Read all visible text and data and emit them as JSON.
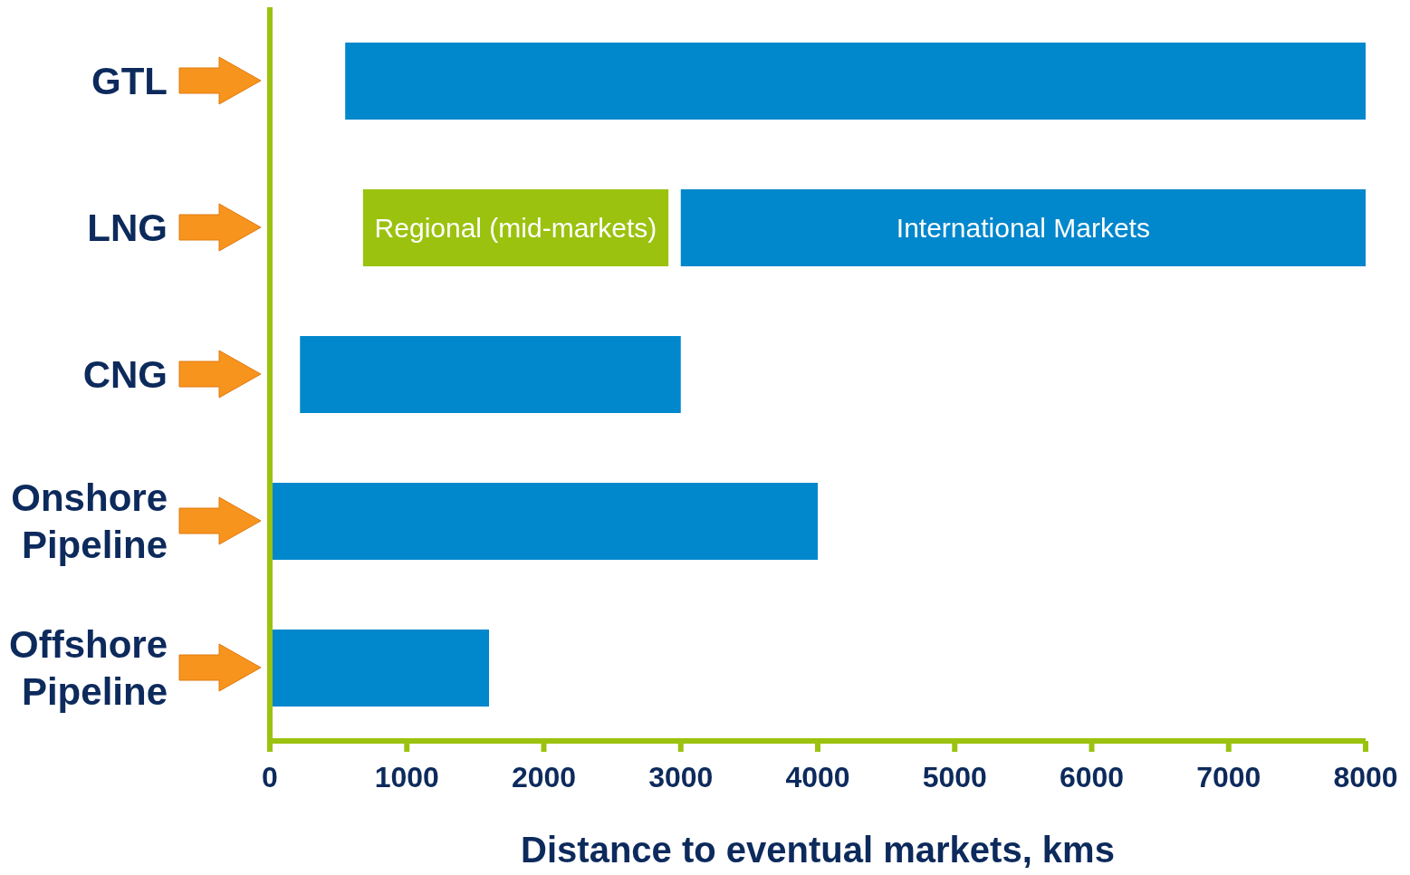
{
  "chart_data": {
    "type": "bar",
    "orientation": "horizontal",
    "xlabel": "Distance to eventual markets, kms",
    "categories": [
      "GTL",
      "LNG",
      "CNG",
      "Onshore Pipeline",
      "Offshore Pipeline"
    ],
    "series": [
      {
        "color": "#0087cc",
        "base": [
          550,
          3000,
          220,
          0,
          0
        ],
        "values": [
          7450,
          5000,
          2780,
          4000,
          1600
        ],
        "value_labels": [
          null,
          "International Markets",
          null,
          null,
          null
        ]
      },
      {
        "color": "#9bc20f",
        "base": [
          null,
          680,
          null,
          null,
          null
        ],
        "values": [
          null,
          2230,
          null,
          null,
          null
        ],
        "value_labels": [
          null,
          "Regional (mid-markets)",
          null,
          null,
          null
        ]
      }
    ],
    "xlim": [
      0,
      8000
    ],
    "xticks": [
      0,
      1000,
      2000,
      3000,
      4000,
      5000,
      6000,
      7000,
      8000
    ],
    "grid": false,
    "legend": false
  }
}
